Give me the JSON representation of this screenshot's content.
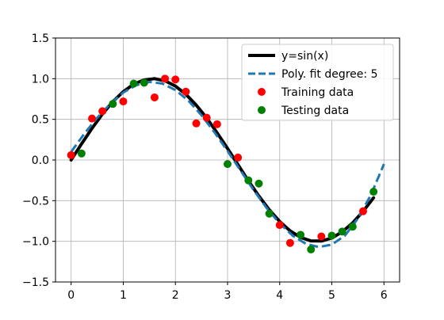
{
  "chart_data": {
    "type": "line",
    "x_ticks": [
      "0",
      "1",
      "2",
      "3",
      "4",
      "5",
      "6"
    ],
    "y_ticks": [
      "−1.5",
      "−1.0",
      "−0.5",
      "0.0",
      "0.5",
      "1.0",
      "1.5"
    ],
    "xlim": [
      -0.3,
      6.3
    ],
    "ylim": [
      -1.5,
      1.5
    ],
    "grid": true,
    "legend_position": "top-right",
    "series": [
      {
        "name": "y=sin(x)",
        "kind": "line",
        "style": "solid",
        "color": "#000000",
        "x": [
          0.0,
          0.2,
          0.4,
          0.6,
          0.8,
          1.0,
          1.2,
          1.4,
          1.6,
          1.8,
          2.0,
          2.2,
          2.4,
          2.6,
          2.8,
          3.0,
          3.2,
          3.4,
          3.6,
          3.8,
          4.0,
          4.2,
          4.4,
          4.6,
          4.8,
          5.0,
          5.2,
          5.4,
          5.6,
          5.8
        ],
        "y": [
          0.0,
          0.199,
          0.389,
          0.565,
          0.717,
          0.841,
          0.932,
          0.985,
          1.0,
          0.974,
          0.909,
          0.808,
          0.675,
          0.516,
          0.335,
          0.141,
          -0.058,
          -0.256,
          -0.443,
          -0.612,
          -0.757,
          -0.872,
          -0.952,
          -0.994,
          -0.996,
          -0.959,
          -0.883,
          -0.773,
          -0.631,
          -0.465
        ]
      },
      {
        "name": "Poly. fit degree: 5",
        "kind": "line",
        "style": "dashed",
        "color": "#1f77b4",
        "x": [
          0.0,
          0.25,
          0.5,
          0.75,
          1.0,
          1.25,
          1.5,
          1.75,
          2.0,
          2.25,
          2.5,
          2.75,
          3.0,
          3.25,
          3.5,
          3.75,
          4.0,
          4.25,
          4.5,
          4.75,
          5.0,
          5.25,
          5.5,
          5.75,
          6.0
        ],
        "y": [
          0.1,
          0.32,
          0.52,
          0.69,
          0.83,
          0.92,
          0.96,
          0.94,
          0.86,
          0.73,
          0.55,
          0.34,
          0.11,
          -0.13,
          -0.37,
          -0.59,
          -0.78,
          -0.93,
          -1.03,
          -1.07,
          -1.04,
          -0.93,
          -0.72,
          -0.43,
          -0.05
        ]
      },
      {
        "name": "Training data",
        "kind": "scatter",
        "color": "#ff0000",
        "x": [
          0.0,
          0.4,
          0.6,
          1.0,
          1.6,
          1.8,
          2.0,
          2.2,
          2.4,
          2.6,
          2.8,
          3.2,
          4.0,
          4.2,
          4.8,
          5.6
        ],
        "y": [
          0.06,
          0.51,
          0.6,
          0.72,
          0.77,
          1.0,
          0.99,
          0.84,
          0.45,
          0.52,
          0.44,
          0.03,
          -0.8,
          -1.02,
          -0.94,
          -0.63
        ]
      },
      {
        "name": "Testing data",
        "kind": "scatter",
        "color": "#008000",
        "x": [
          0.2,
          0.8,
          1.2,
          1.4,
          3.0,
          3.4,
          3.6,
          3.8,
          4.4,
          4.6,
          5.0,
          5.2,
          5.4,
          5.8
        ],
        "y": [
          0.08,
          0.69,
          0.94,
          0.95,
          -0.05,
          -0.25,
          -0.29,
          -0.66,
          -0.92,
          -1.1,
          -0.93,
          -0.88,
          -0.82,
          -0.39
        ]
      }
    ]
  }
}
